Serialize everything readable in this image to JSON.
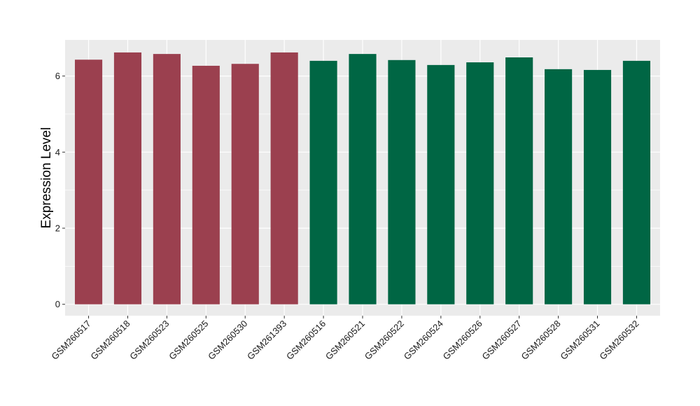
{
  "chart_data": {
    "type": "bar",
    "ylabel": "Expression Level",
    "xlabel": "",
    "ylim": [
      -0.3,
      6.95
    ],
    "yticks": [
      0,
      2,
      4,
      6
    ],
    "grid": true,
    "panel_background": "#ebebeb",
    "categories": [
      "GSM260517",
      "GSM260518",
      "GSM260523",
      "GSM260525",
      "GSM260530",
      "GSM261393",
      "GSM260516",
      "GSM260521",
      "GSM260522",
      "GSM260524",
      "GSM260526",
      "GSM260527",
      "GSM260528",
      "GSM260531",
      "GSM260532"
    ],
    "values": [
      6.43,
      6.62,
      6.58,
      6.27,
      6.32,
      6.62,
      6.4,
      6.58,
      6.42,
      6.29,
      6.36,
      6.49,
      6.18,
      6.16,
      6.4
    ],
    "bar_colors": [
      "#9b404f",
      "#9b404f",
      "#9b404f",
      "#9b404f",
      "#9b404f",
      "#9b404f",
      "#006644",
      "#006644",
      "#006644",
      "#006644",
      "#006644",
      "#006644",
      "#006644",
      "#006644",
      "#006644"
    ]
  }
}
